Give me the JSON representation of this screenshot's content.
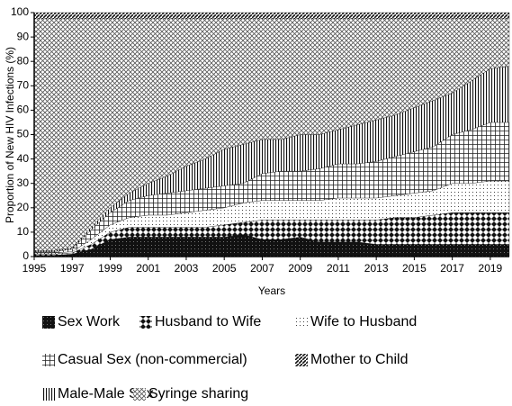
{
  "chart_data": {
    "type": "stacked_area",
    "y_label": "Proportion of New HIV Infections (%)",
    "x_label": "Years",
    "x": [
      1995,
      1996,
      1997,
      1998,
      1999,
      2000,
      2001,
      2002,
      2003,
      2004,
      2005,
      2006,
      2007,
      2008,
      2009,
      2010,
      2011,
      2012,
      2013,
      2014,
      2015,
      2016,
      2017,
      2018,
      2019,
      2020
    ],
    "xlim": [
      1995,
      2020
    ],
    "xticks": [
      1995,
      1997,
      1999,
      2001,
      2003,
      2005,
      2007,
      2009,
      2011,
      2013,
      2015,
      2017,
      2019
    ],
    "ylim": [
      0,
      100
    ],
    "yticks": [
      0,
      10,
      20,
      30,
      40,
      50,
      60,
      70,
      80,
      90,
      100
    ],
    "series": [
      {
        "name": "Sex Work",
        "color": "#000000",
        "values": [
          0.5,
          0.5,
          1,
          3,
          7,
          8,
          8,
          8,
          8,
          8,
          8,
          9,
          7,
          7,
          8,
          6,
          6,
          6,
          5,
          5,
          5,
          5,
          5,
          5,
          5,
          5
        ]
      },
      {
        "name": "Husband to Wife",
        "color": "#000000",
        "values": [
          0.5,
          0.5,
          0.5,
          2,
          3,
          4,
          4,
          4,
          4,
          4,
          5,
          5,
          8,
          8,
          7,
          9,
          9,
          9,
          10,
          11,
          11,
          12,
          13,
          13,
          13,
          13
        ]
      },
      {
        "name": "Wife to Husband",
        "color": "#000000",
        "values": [
          0.5,
          0.5,
          0.5,
          2,
          3,
          4,
          5,
          5,
          6,
          7,
          7,
          8,
          8,
          8,
          8,
          8,
          9,
          9,
          9,
          9,
          10,
          10,
          12,
          12,
          13,
          13
        ]
      },
      {
        "name": "Casual Sex (non-commercial)",
        "color": "#000000",
        "values": [
          0.5,
          0.5,
          1,
          4,
          5,
          7,
          8,
          9,
          9,
          9,
          9,
          8,
          11,
          12,
          12,
          13,
          14,
          14,
          15,
          16,
          17,
          18,
          20,
          22,
          24,
          24
        ]
      },
      {
        "name": "Male-Male Sex",
        "color": "#000000",
        "values": [
          0.5,
          0.5,
          0.5,
          1,
          2,
          3,
          5,
          7,
          10,
          12,
          15,
          16,
          14,
          13,
          15,
          14,
          14,
          16,
          17,
          17,
          18,
          19,
          17,
          20,
          22,
          23
        ]
      },
      {
        "name": "Syringe sharing",
        "color": "#000000",
        "values": [
          95,
          95,
          94,
          85.5,
          77.5,
          71.5,
          67.5,
          64.5,
          60.5,
          57.5,
          53.5,
          51.5,
          49.5,
          49.5,
          47.5,
          47.5,
          45.5,
          43.5,
          41.5,
          39.5,
          36.5,
          33.5,
          30.5,
          25.5,
          20.5,
          19.5
        ]
      },
      {
        "name": "Mother to Child",
        "color": "#000000",
        "values": [
          2.5,
          2.5,
          2.5,
          2.5,
          2.5,
          2.5,
          2.5,
          2.5,
          2.5,
          2.5,
          2.5,
          2.5,
          2.5,
          2.5,
          2.5,
          2.5,
          2.5,
          2.5,
          2.5,
          2.5,
          2.5,
          2.5,
          2.5,
          2.5,
          2.5,
          2.5
        ]
      }
    ]
  }
}
